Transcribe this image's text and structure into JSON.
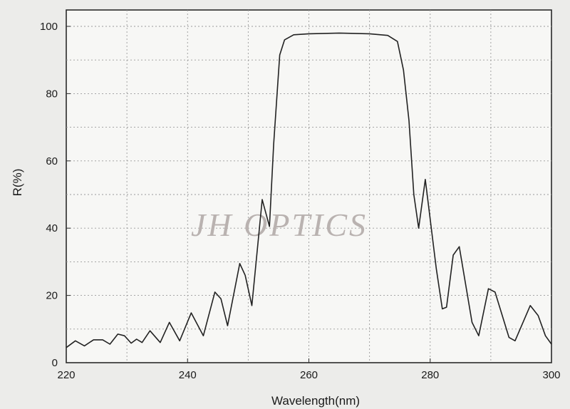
{
  "watermark": "JH OPTICS",
  "chart_data": {
    "type": "line",
    "title": "",
    "xlabel": "Wavelength(nm)",
    "ylabel": "R(%)",
    "xlim": [
      220,
      300
    ],
    "ylim": [
      0,
      100
    ],
    "grid": true,
    "x_ticks": [
      220,
      240,
      260,
      280,
      300
    ],
    "y_ticks": [
      0,
      20,
      40,
      60,
      80,
      100
    ],
    "series": [
      {
        "values": [
          [
            220.0,
            4.5
          ],
          [
            221.5,
            6.5
          ],
          [
            223.0,
            5.0
          ],
          [
            224.5,
            6.8
          ],
          [
            226.0,
            6.8
          ],
          [
            227.2,
            5.5
          ],
          [
            228.5,
            8.5
          ],
          [
            229.6,
            8.0
          ],
          [
            230.7,
            5.8
          ],
          [
            231.6,
            7.0
          ],
          [
            232.5,
            6.0
          ],
          [
            233.8,
            9.5
          ],
          [
            235.5,
            6.0
          ],
          [
            237.0,
            12.0
          ],
          [
            238.7,
            6.5
          ],
          [
            240.6,
            14.8
          ],
          [
            242.6,
            8.0
          ],
          [
            244.5,
            21.0
          ],
          [
            245.5,
            19.0
          ],
          [
            246.6,
            11.0
          ],
          [
            248.6,
            29.5
          ],
          [
            249.5,
            26.0
          ],
          [
            250.6,
            17.0
          ],
          [
            252.3,
            48.5
          ],
          [
            253.5,
            40.5
          ],
          [
            254.2,
            65.0
          ],
          [
            255.2,
            91.5
          ],
          [
            256.0,
            96.0
          ],
          [
            257.5,
            97.5
          ],
          [
            260.0,
            97.8
          ],
          [
            265.0,
            98.0
          ],
          [
            270.0,
            97.8
          ],
          [
            273.0,
            97.3
          ],
          [
            274.6,
            95.5
          ],
          [
            275.6,
            87.0
          ],
          [
            276.5,
            72.0
          ],
          [
            277.3,
            50.0
          ],
          [
            278.1,
            40.0
          ],
          [
            279.2,
            54.5
          ],
          [
            281.0,
            28.0
          ],
          [
            282.0,
            16.0
          ],
          [
            282.7,
            16.5
          ],
          [
            283.8,
            32.0
          ],
          [
            284.8,
            34.5
          ],
          [
            286.9,
            12.0
          ],
          [
            288.0,
            8.0
          ],
          [
            289.6,
            22.0
          ],
          [
            290.7,
            21.0
          ],
          [
            293.0,
            7.5
          ],
          [
            294.0,
            6.5
          ],
          [
            296.5,
            17.0
          ],
          [
            297.8,
            14.0
          ],
          [
            299.0,
            8.0
          ],
          [
            300.0,
            5.5
          ]
        ]
      }
    ]
  }
}
